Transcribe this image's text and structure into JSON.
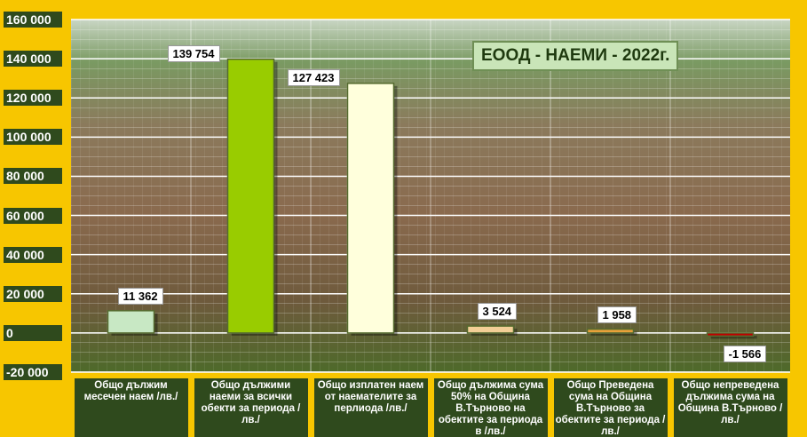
{
  "chart_data": {
    "type": "bar",
    "title": "ЕООД - НАЕМИ - 2022г.",
    "categories": [
      "Общо дължим месечен наем /лв./",
      "Общо дължими наеми за всички обекти за периода /лв./",
      "Общо изплатен наем от наемателите за перлиода /лв./",
      "Общо дължима сума 50% на Община В.Търново на обектите за периода в /лв./",
      "Общо Преведена сума на Община В.Търново за обектите за периода /лв./",
      "Общо непреведена дължима сума на Община В.Търново /лв./"
    ],
    "values": [
      11362,
      139754,
      127423,
      3524,
      1958,
      -1566
    ],
    "value_labels": [
      "11 362",
      "139 754",
      "127 423",
      "3 524",
      "1 958",
      "-1 566"
    ],
    "colors": [
      "#c8e8c4",
      "#99cc00",
      "#ffffdc",
      "#f3cf96",
      "#e8a13a",
      "#c00000"
    ],
    "ylim": [
      -20000,
      160000
    ],
    "yticks": [
      {
        "value": -20000,
        "label": "-20 000"
      },
      0,
      {
        "value": 20000,
        "label": "20 000"
      },
      {
        "value": 40000,
        "label": "40 000"
      },
      {
        "value": 60000,
        "label": "60 000"
      },
      {
        "value": 80000,
        "label": "80 000"
      },
      {
        "value": 100000,
        "label": "100 000"
      },
      {
        "value": 120000,
        "label": "120 000"
      },
      {
        "value": 140000,
        "label": "140 000"
      },
      {
        "value": 160000,
        "label": "160 000"
      }
    ],
    "grid": true
  }
}
